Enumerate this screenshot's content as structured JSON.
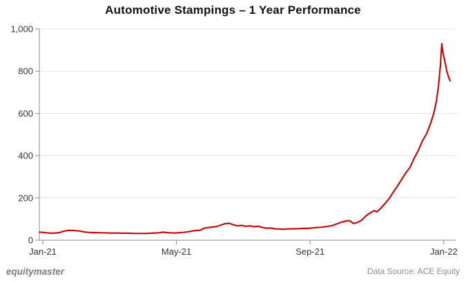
{
  "title": "Automotive Stampings – 1 Year Performance",
  "footer": {
    "brand": "equitymaster",
    "data_source": "Data Source: ACE Equity"
  },
  "colors": {
    "line": "#c00c0c",
    "grid": "#e4e4e4",
    "axis": "#888888",
    "tick": "#888888",
    "tick_label": "#333333",
    "title": "#111111"
  },
  "chart_data": {
    "type": "line",
    "title": "Automotive Stampings – 1 Year Performance",
    "xlabel": "",
    "ylabel": "",
    "x_unit": "months since Jan-2021",
    "x_tick_labels": [
      "Jan-21",
      "May-21",
      "Sep-21",
      "Jan-22"
    ],
    "x_tick_positions": [
      0,
      4,
      8,
      12
    ],
    "y_tick_values": [
      0,
      200,
      400,
      600,
      800,
      1000
    ],
    "y_tick_labels": [
      "0",
      "200",
      "400",
      "600",
      "800",
      "1,000"
    ],
    "ylim": [
      0,
      1000
    ],
    "xlim": [
      -0.1,
      12.35
    ],
    "grid": "horizontal-only",
    "legend": "none",
    "series": [
      {
        "name": "Automotive Stampings",
        "color": "#c00c0c",
        "points": [
          [
            -0.1,
            38
          ],
          [
            0,
            37
          ],
          [
            0.12,
            35
          ],
          [
            0.25,
            33
          ],
          [
            0.37,
            34
          ],
          [
            0.5,
            36
          ],
          [
            0.62,
            42
          ],
          [
            0.74,
            46
          ],
          [
            0.87,
            46
          ],
          [
            0.99,
            45
          ],
          [
            1.12,
            43
          ],
          [
            1.24,
            39
          ],
          [
            1.36,
            37
          ],
          [
            1.49,
            36
          ],
          [
            1.61,
            36
          ],
          [
            1.74,
            35
          ],
          [
            1.86,
            35
          ],
          [
            1.98,
            34
          ],
          [
            2.11,
            34
          ],
          [
            2.23,
            34
          ],
          [
            2.36,
            33
          ],
          [
            2.48,
            33
          ],
          [
            2.6,
            33
          ],
          [
            2.73,
            32
          ],
          [
            2.85,
            32
          ],
          [
            2.98,
            32
          ],
          [
            3.1,
            32
          ],
          [
            3.22,
            33
          ],
          [
            3.35,
            34
          ],
          [
            3.47,
            35
          ],
          [
            3.6,
            38
          ],
          [
            3.72,
            36
          ],
          [
            3.84,
            35
          ],
          [
            3.97,
            34
          ],
          [
            4.09,
            36
          ],
          [
            4.21,
            37
          ],
          [
            4.34,
            40
          ],
          [
            4.46,
            43
          ],
          [
            4.59,
            46
          ],
          [
            4.71,
            47
          ],
          [
            4.83,
            57
          ],
          [
            4.96,
            60
          ],
          [
            5.08,
            62
          ],
          [
            5.21,
            65
          ],
          [
            5.33,
            72
          ],
          [
            5.45,
            78
          ],
          [
            5.58,
            80
          ],
          [
            5.7,
            73
          ],
          [
            5.83,
            68
          ],
          [
            5.95,
            70
          ],
          [
            6.07,
            66
          ],
          [
            6.2,
            68
          ],
          [
            6.32,
            64
          ],
          [
            6.45,
            66
          ],
          [
            6.57,
            60
          ],
          [
            6.69,
            57
          ],
          [
            6.82,
            58
          ],
          [
            6.94,
            54
          ],
          [
            7.07,
            53
          ],
          [
            7.19,
            52
          ],
          [
            7.31,
            53
          ],
          [
            7.44,
            54
          ],
          [
            7.56,
            54
          ],
          [
            7.69,
            55
          ],
          [
            7.81,
            56
          ],
          [
            7.93,
            56
          ],
          [
            8.06,
            58
          ],
          [
            8.18,
            60
          ],
          [
            8.31,
            61
          ],
          [
            8.43,
            63
          ],
          [
            8.55,
            66
          ],
          [
            8.68,
            70
          ],
          [
            8.8,
            77
          ],
          [
            8.93,
            85
          ],
          [
            9.05,
            90
          ],
          [
            9.17,
            93
          ],
          [
            9.3,
            79
          ],
          [
            9.42,
            84
          ],
          [
            9.55,
            95
          ],
          [
            9.67,
            115
          ],
          [
            9.79,
            128
          ],
          [
            9.92,
            140
          ],
          [
            10.0,
            134
          ],
          [
            10.12,
            152
          ],
          [
            10.25,
            175
          ],
          [
            10.37,
            198
          ],
          [
            10.5,
            230
          ],
          [
            10.62,
            258
          ],
          [
            10.74,
            288
          ],
          [
            10.87,
            320
          ],
          [
            10.99,
            345
          ],
          [
            11.12,
            390
          ],
          [
            11.24,
            425
          ],
          [
            11.36,
            470
          ],
          [
            11.49,
            505
          ],
          [
            11.61,
            555
          ],
          [
            11.7,
            600
          ],
          [
            11.78,
            660
          ],
          [
            11.84,
            730
          ],
          [
            11.9,
            830
          ],
          [
            11.94,
            930
          ],
          [
            11.98,
            885
          ],
          [
            12.03,
            848
          ],
          [
            12.09,
            800
          ],
          [
            12.15,
            770
          ],
          [
            12.19,
            755
          ]
        ]
      }
    ]
  }
}
